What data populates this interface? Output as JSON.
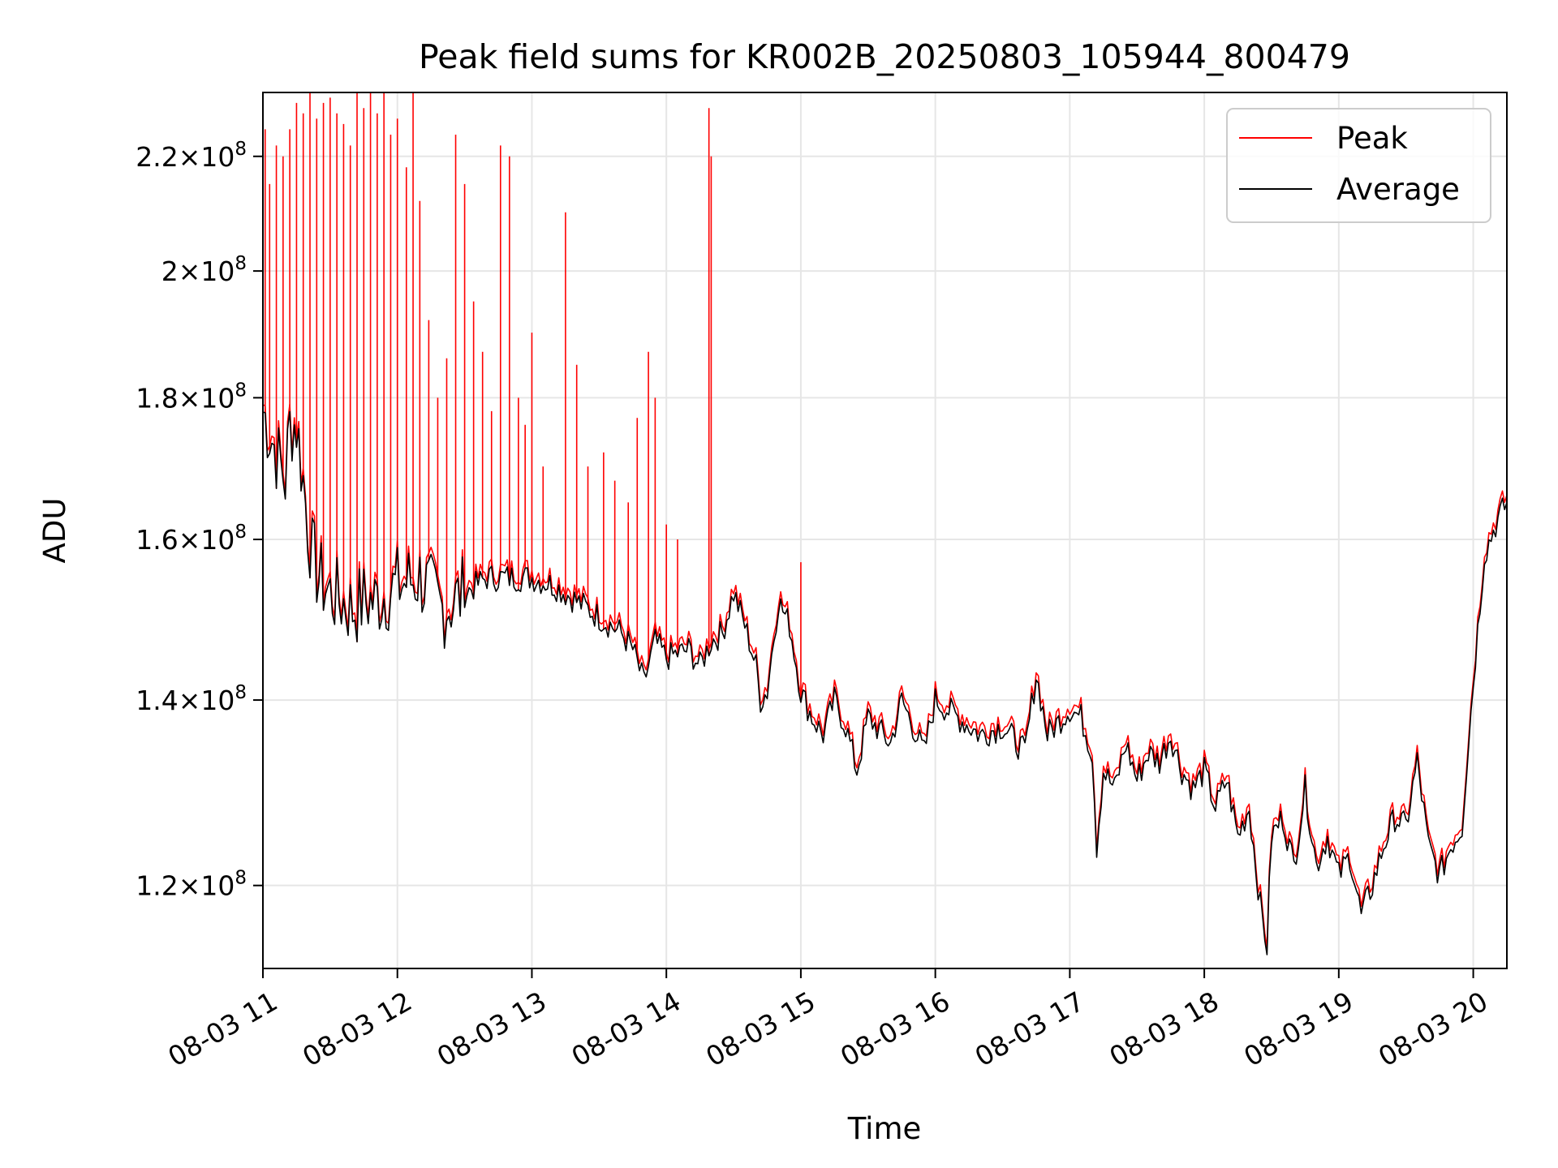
{
  "chart_data": {
    "type": "line",
    "title": "Peak field sums for KR002B_20250803_105944_800479",
    "xlabel": "Time",
    "ylabel": "ADU",
    "x_axis": {
      "kind": "datetime",
      "range": [
        "2025-08-03T11:00",
        "2025-08-03T20:15"
      ],
      "ticks": [
        "08-03 11",
        "08-03 12",
        "08-03 13",
        "08-03 14",
        "08-03 15",
        "08-03 16",
        "08-03 17",
        "08-03 18",
        "08-03 19",
        "08-03 20"
      ],
      "tick_times": [
        "2025-08-03T11:00",
        "2025-08-03T12:00",
        "2025-08-03T13:00",
        "2025-08-03T14:00",
        "2025-08-03T15:00",
        "2025-08-03T16:00",
        "2025-08-03T17:00",
        "2025-08-03T18:00",
        "2025-08-03T19:00",
        "2025-08-03T20:00"
      ]
    },
    "y_axis": {
      "scale": "log",
      "range": [
        112000000,
        232000000
      ],
      "ticks": [
        {
          "value": 120000000,
          "mantissa": "1.2",
          "base": "10",
          "exponent": "8"
        },
        {
          "value": 140000000,
          "mantissa": "1.4",
          "base": "10",
          "exponent": "8"
        },
        {
          "value": 160000000,
          "mantissa": "1.6",
          "base": "10",
          "exponent": "8"
        },
        {
          "value": 180000000,
          "mantissa": "1.8",
          "base": "10",
          "exponent": "8"
        },
        {
          "value": 200000000,
          "mantissa": "2",
          "base": "10",
          "exponent": "8"
        },
        {
          "value": 220000000,
          "mantissa": "2.2",
          "base": "10",
          "exponent": "8"
        }
      ]
    },
    "grid": true,
    "legend": {
      "placement": "top-right",
      "entries": [
        {
          "label": "Peak",
          "color": "#ff0000"
        },
        {
          "label": "Average",
          "color": "#000000"
        }
      ]
    },
    "series": [
      {
        "name": "Average",
        "color": "#000000",
        "points": [
          [
            "2025-08-03T11:00",
            178000000
          ],
          [
            "2025-08-03T11:02",
            176000000
          ],
          [
            "2025-08-03T11:05",
            173000000
          ],
          [
            "2025-08-03T11:10",
            168000000
          ],
          [
            "2025-08-03T11:12",
            176000000
          ],
          [
            "2025-08-03T11:15",
            176000000
          ],
          [
            "2025-08-03T11:18",
            168000000
          ],
          [
            "2025-08-03T11:20",
            162000000
          ],
          [
            "2025-08-03T11:22",
            158000000
          ],
          [
            "2025-08-03T11:25",
            155000000
          ],
          [
            "2025-08-03T11:30",
            153000000
          ],
          [
            "2025-08-03T11:35",
            152000000
          ],
          [
            "2025-08-03T11:40",
            151000000
          ],
          [
            "2025-08-03T11:45",
            152000000
          ],
          [
            "2025-08-03T11:50",
            152000000
          ],
          [
            "2025-08-03T11:55",
            153000000
          ],
          [
            "2025-08-03T12:00",
            154000000
          ],
          [
            "2025-08-03T12:10",
            155000000
          ],
          [
            "2025-08-03T12:15",
            153000000
          ],
          [
            "2025-08-03T12:20",
            151000000
          ],
          [
            "2025-08-03T12:30",
            153000000
          ],
          [
            "2025-08-03T12:40",
            155000000
          ],
          [
            "2025-08-03T12:50",
            155000000
          ],
          [
            "2025-08-03T13:00",
            155000000
          ],
          [
            "2025-08-03T13:10",
            154000000
          ],
          [
            "2025-08-03T13:20",
            152000000
          ],
          [
            "2025-08-03T13:30",
            150000000
          ],
          [
            "2025-08-03T13:40",
            148000000
          ],
          [
            "2025-08-03T13:45",
            146000000
          ],
          [
            "2025-08-03T13:50",
            142000000
          ],
          [
            "2025-08-03T13:55",
            147000000
          ],
          [
            "2025-08-03T14:00",
            145000000
          ],
          [
            "2025-08-03T14:10",
            146000000
          ],
          [
            "2025-08-03T14:15",
            144000000
          ],
          [
            "2025-08-03T14:20",
            147000000
          ],
          [
            "2025-08-03T14:25",
            148000000
          ],
          [
            "2025-08-03T14:30",
            153000000
          ],
          [
            "2025-08-03T14:35",
            149000000
          ],
          [
            "2025-08-03T14:40",
            144000000
          ],
          [
            "2025-08-03T14:42",
            140000000
          ],
          [
            "2025-08-03T14:45",
            141000000
          ],
          [
            "2025-08-03T14:50",
            152000000
          ],
          [
            "2025-08-03T14:55",
            149000000
          ],
          [
            "2025-08-03T15:00",
            141000000
          ],
          [
            "2025-08-03T15:05",
            138000000
          ],
          [
            "2025-08-03T15:10",
            136000000
          ],
          [
            "2025-08-03T15:15",
            140000000
          ],
          [
            "2025-08-03T15:20",
            137000000
          ],
          [
            "2025-08-03T15:25",
            132000000
          ],
          [
            "2025-08-03T15:30",
            138000000
          ],
          [
            "2025-08-03T15:40",
            135000000
          ],
          [
            "2025-08-03T15:45",
            140000000
          ],
          [
            "2025-08-03T15:50",
            137000000
          ],
          [
            "2025-08-03T15:55",
            134000000
          ],
          [
            "2025-08-03T16:00",
            140000000
          ],
          [
            "2025-08-03T16:10",
            138000000
          ],
          [
            "2025-08-03T16:20",
            136000000
          ],
          [
            "2025-08-03T16:30",
            137000000
          ],
          [
            "2025-08-03T16:40",
            134000000
          ],
          [
            "2025-08-03T16:45",
            143000000
          ],
          [
            "2025-08-03T16:50",
            136000000
          ],
          [
            "2025-08-03T17:00",
            139000000
          ],
          [
            "2025-08-03T17:05",
            138000000
          ],
          [
            "2025-08-03T17:10",
            134000000
          ],
          [
            "2025-08-03T17:12",
            124000000
          ],
          [
            "2025-08-03T17:15",
            132000000
          ],
          [
            "2025-08-03T17:20",
            130000000
          ],
          [
            "2025-08-03T17:25",
            135000000
          ],
          [
            "2025-08-03T17:30",
            131000000
          ],
          [
            "2025-08-03T17:35",
            134000000
          ],
          [
            "2025-08-03T17:40",
            133000000
          ],
          [
            "2025-08-03T17:45",
            136000000
          ],
          [
            "2025-08-03T17:50",
            132000000
          ],
          [
            "2025-08-03T17:55",
            130000000
          ],
          [
            "2025-08-03T18:00",
            132000000
          ],
          [
            "2025-08-03T18:05",
            128000000
          ],
          [
            "2025-08-03T18:10",
            131000000
          ],
          [
            "2025-08-03T18:15",
            125000000
          ],
          [
            "2025-08-03T18:20",
            128000000
          ],
          [
            "2025-08-03T18:25",
            118000000
          ],
          [
            "2025-08-03T18:28",
            114000000
          ],
          [
            "2025-08-03T18:30",
            125000000
          ],
          [
            "2025-08-03T18:35",
            127000000
          ],
          [
            "2025-08-03T18:40",
            122000000
          ],
          [
            "2025-08-03T18:45",
            130000000
          ],
          [
            "2025-08-03T18:50",
            122000000
          ],
          [
            "2025-08-03T18:55",
            125000000
          ],
          [
            "2025-08-03T19:00",
            121000000
          ],
          [
            "2025-08-03T19:05",
            123000000
          ],
          [
            "2025-08-03T19:10",
            117000000
          ],
          [
            "2025-08-03T19:15",
            120000000
          ],
          [
            "2025-08-03T19:20",
            124000000
          ],
          [
            "2025-08-03T19:25",
            127000000
          ],
          [
            "2025-08-03T19:30",
            126000000
          ],
          [
            "2025-08-03T19:35",
            133000000
          ],
          [
            "2025-08-03T19:40",
            124000000
          ],
          [
            "2025-08-03T19:45",
            121000000
          ],
          [
            "2025-08-03T19:50",
            124000000
          ],
          [
            "2025-08-03T19:55",
            126000000
          ],
          [
            "2025-08-03T20:00",
            142000000
          ],
          [
            "2025-08-03T20:05",
            158000000
          ],
          [
            "2025-08-03T20:10",
            162000000
          ],
          [
            "2025-08-03T20:15",
            165000000
          ]
        ]
      },
      {
        "name": "Peak",
        "color": "#ff0000",
        "note_points": "Peak follows Average except where spikes occur",
        "spikes": [
          [
            "2025-08-03T11:01",
            225000000
          ],
          [
            "2025-08-03T11:03",
            215000000
          ],
          [
            "2025-08-03T11:06",
            222000000
          ],
          [
            "2025-08-03T11:09",
            220000000
          ],
          [
            "2025-08-03T11:12",
            225000000
          ],
          [
            "2025-08-03T11:15",
            230000000
          ],
          [
            "2025-08-03T11:18",
            228000000
          ],
          [
            "2025-08-03T11:21",
            232000000
          ],
          [
            "2025-08-03T11:24",
            227000000
          ],
          [
            "2025-08-03T11:27",
            230000000
          ],
          [
            "2025-08-03T11:30",
            231000000
          ],
          [
            "2025-08-03T11:33",
            228000000
          ],
          [
            "2025-08-03T11:36",
            226000000
          ],
          [
            "2025-08-03T11:39",
            222000000
          ],
          [
            "2025-08-03T11:42",
            232000000
          ],
          [
            "2025-08-03T11:45",
            229000000
          ],
          [
            "2025-08-03T11:48",
            232000000
          ],
          [
            "2025-08-03T11:51",
            228000000
          ],
          [
            "2025-08-03T11:54",
            232000000
          ],
          [
            "2025-08-03T11:57",
            224000000
          ],
          [
            "2025-08-03T12:00",
            227000000
          ],
          [
            "2025-08-03T12:04",
            218000000
          ],
          [
            "2025-08-03T12:07",
            232000000
          ],
          [
            "2025-08-03T12:10",
            212000000
          ],
          [
            "2025-08-03T12:14",
            192000000
          ],
          [
            "2025-08-03T12:18",
            180000000
          ],
          [
            "2025-08-03T12:22",
            186000000
          ],
          [
            "2025-08-03T12:26",
            224000000
          ],
          [
            "2025-08-03T12:30",
            215000000
          ],
          [
            "2025-08-03T12:34",
            195000000
          ],
          [
            "2025-08-03T12:38",
            187000000
          ],
          [
            "2025-08-03T12:42",
            178000000
          ],
          [
            "2025-08-03T12:46",
            222000000
          ],
          [
            "2025-08-03T12:50",
            220000000
          ],
          [
            "2025-08-03T12:54",
            180000000
          ],
          [
            "2025-08-03T12:57",
            176000000
          ],
          [
            "2025-08-03T13:00",
            190000000
          ],
          [
            "2025-08-03T13:05",
            170000000
          ],
          [
            "2025-08-03T13:15",
            210000000
          ],
          [
            "2025-08-03T13:20",
            185000000
          ],
          [
            "2025-08-03T13:25",
            170000000
          ],
          [
            "2025-08-03T13:32",
            172000000
          ],
          [
            "2025-08-03T13:37",
            168000000
          ],
          [
            "2025-08-03T13:43",
            165000000
          ],
          [
            "2025-08-03T13:47",
            177000000
          ],
          [
            "2025-08-03T13:52",
            187000000
          ],
          [
            "2025-08-03T13:55",
            180000000
          ],
          [
            "2025-08-03T14:00",
            162000000
          ],
          [
            "2025-08-03T14:05",
            160000000
          ],
          [
            "2025-08-03T14:19",
            229000000
          ],
          [
            "2025-08-03T14:20",
            220000000
          ],
          [
            "2025-08-03T15:00",
            157000000
          ]
        ]
      }
    ]
  }
}
